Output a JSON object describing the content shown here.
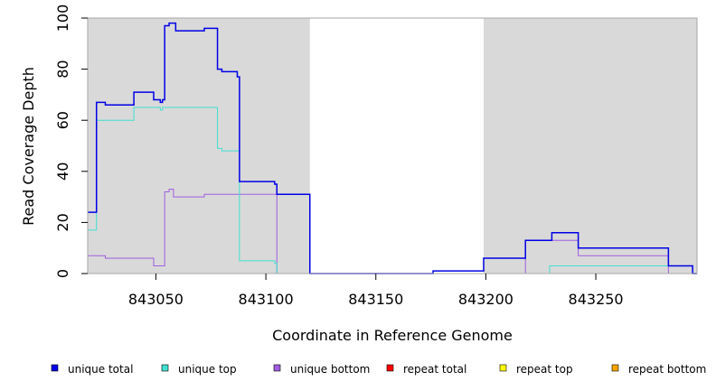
{
  "chart_data": {
    "type": "line",
    "xlabel": "Coordinate in Reference Genome",
    "ylabel": "Read Coverage Depth",
    "xlim": [
      843019,
      843296
    ],
    "ylim": [
      0,
      100
    ],
    "x_ticks": [
      843050,
      843100,
      843150,
      843200,
      843250
    ],
    "y_ticks": [
      0,
      20,
      40,
      60,
      80,
      100
    ],
    "grey_regions": [
      [
        843019,
        843120
      ],
      [
        843199,
        843296
      ]
    ],
    "legend_position": "bottom",
    "series": [
      {
        "name": "unique total",
        "color": "#0000e6",
        "points": [
          [
            843019,
            24
          ],
          [
            843023,
            24
          ],
          [
            843023,
            67
          ],
          [
            843027,
            67
          ],
          [
            843027,
            66
          ],
          [
            843040,
            66
          ],
          [
            843040,
            71
          ],
          [
            843049,
            71
          ],
          [
            843049,
            68
          ],
          [
            843052,
            68
          ],
          [
            843052,
            67
          ],
          [
            843053,
            67
          ],
          [
            843053,
            68
          ],
          [
            843054,
            68
          ],
          [
            843054,
            97
          ],
          [
            843056,
            97
          ],
          [
            843056,
            98
          ],
          [
            843059,
            98
          ],
          [
            843059,
            95
          ],
          [
            843072,
            95
          ],
          [
            843072,
            96
          ],
          [
            843078,
            96
          ],
          [
            843078,
            80
          ],
          [
            843080,
            80
          ],
          [
            843080,
            79
          ],
          [
            843087,
            79
          ],
          [
            843087,
            77
          ],
          [
            843088,
            77
          ],
          [
            843088,
            36
          ],
          [
            843104,
            36
          ],
          [
            843104,
            35
          ],
          [
            843105,
            35
          ],
          [
            843105,
            31
          ],
          [
            843120,
            31
          ],
          [
            843120,
            0
          ],
          [
            843176,
            0
          ],
          [
            843176,
            1
          ],
          [
            843199,
            1
          ],
          [
            843199,
            6
          ],
          [
            843218,
            6
          ],
          [
            843218,
            13
          ],
          [
            843230,
            13
          ],
          [
            843230,
            16
          ],
          [
            843242,
            16
          ],
          [
            843242,
            10
          ],
          [
            843283,
            10
          ],
          [
            843283,
            3
          ],
          [
            843294,
            3
          ],
          [
            843294,
            0
          ],
          [
            843296,
            0
          ]
        ]
      },
      {
        "name": "unique top",
        "color": "#40e0d0",
        "points": [
          [
            843019,
            17
          ],
          [
            843023,
            17
          ],
          [
            843023,
            60
          ],
          [
            843040,
            60
          ],
          [
            843040,
            65
          ],
          [
            843052,
            65
          ],
          [
            843052,
            64
          ],
          [
            843053,
            64
          ],
          [
            843053,
            65
          ],
          [
            843078,
            65
          ],
          [
            843078,
            49
          ],
          [
            843080,
            49
          ],
          [
            843080,
            48
          ],
          [
            843088,
            48
          ],
          [
            843088,
            5
          ],
          [
            843104,
            5
          ],
          [
            843104,
            4
          ],
          [
            843105,
            4
          ],
          [
            843105,
            0
          ],
          [
            843229,
            0
          ],
          [
            843229,
            3
          ],
          [
            843294,
            3
          ],
          [
            843294,
            0
          ],
          [
            843296,
            0
          ]
        ]
      },
      {
        "name": "unique bottom",
        "color": "#a05de0",
        "points": [
          [
            843019,
            7
          ],
          [
            843027,
            7
          ],
          [
            843027,
            6
          ],
          [
            843049,
            6
          ],
          [
            843049,
            3
          ],
          [
            843054,
            3
          ],
          [
            843054,
            32
          ],
          [
            843056,
            32
          ],
          [
            843056,
            33
          ],
          [
            843058,
            33
          ],
          [
            843058,
            30
          ],
          [
            843072,
            30
          ],
          [
            843072,
            31
          ],
          [
            843105,
            31
          ],
          [
            843105,
            0
          ],
          [
            843218,
            0
          ],
          [
            843218,
            13
          ],
          [
            843242,
            13
          ],
          [
            843242,
            7
          ],
          [
            843283,
            7
          ],
          [
            843283,
            0
          ],
          [
            843296,
            0
          ]
        ]
      },
      {
        "name": "repeat total",
        "color": "#ff0000",
        "points": [
          [
            843019,
            0
          ],
          [
            843296,
            0
          ]
        ]
      },
      {
        "name": "repeat top",
        "color": "#ffff00",
        "points": [
          [
            843019,
            0
          ],
          [
            843296,
            0
          ]
        ]
      },
      {
        "name": "repeat bottom",
        "color": "#ffa500",
        "points": [
          [
            843019,
            0
          ],
          [
            843296,
            0
          ]
        ]
      }
    ]
  },
  "colors": {
    "grey_region": "#d9d9d9",
    "background": "#ffffff",
    "frame": "#a6a6a6"
  }
}
